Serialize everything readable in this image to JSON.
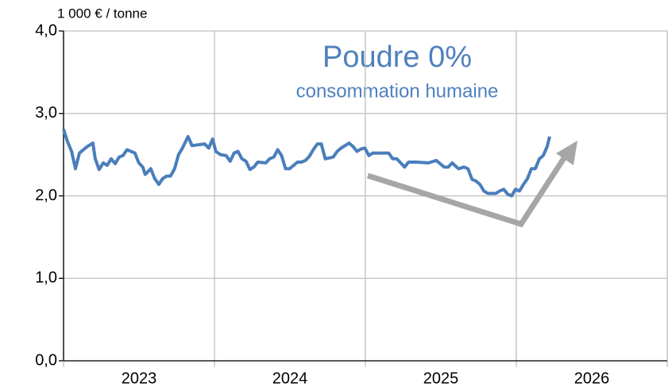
{
  "chart_data": {
    "type": "line",
    "title": "Poudre 0%",
    "subtitle": "consommation humaine",
    "y_label": "1 000 €  / tonne",
    "ylim": [
      0,
      4
    ],
    "yticks": [
      {
        "value": 0,
        "label": "0,0"
      },
      {
        "value": 1,
        "label": "1,0"
      },
      {
        "value": 2,
        "label": "2,0"
      },
      {
        "value": 3,
        "label": "3,0"
      },
      {
        "value": 4,
        "label": "4,0"
      }
    ],
    "xlim": [
      2023,
      2027
    ],
    "xticks": [
      {
        "value": 2023.5,
        "label": "2023"
      },
      {
        "value": 2024.5,
        "label": "2024"
      },
      {
        "value": 2025.5,
        "label": "2025"
      },
      {
        "value": 2026.5,
        "label": "2026"
      }
    ],
    "xgrid": [
      2023,
      2024,
      2025,
      2026,
      2027
    ],
    "grid": true,
    "series": [
      {
        "color": "#4a7ebb",
        "x": [
          2023.0,
          2023.026,
          2023.053,
          2023.079,
          2023.105,
          2023.158,
          2023.194,
          2023.21,
          2023.236,
          2023.263,
          2023.289,
          2023.315,
          2023.342,
          2023.368,
          2023.394,
          2023.42,
          2023.447,
          2023.473,
          2023.499,
          2023.525,
          2023.541,
          2023.578,
          2023.604,
          2023.631,
          2023.657,
          2023.683,
          2023.709,
          2023.736,
          2023.762,
          2023.788,
          2023.825,
          2023.851,
          2023.893,
          2023.935,
          2023.962,
          2023.988,
          2024.009,
          2024.04,
          2024.077,
          2024.104,
          2024.13,
          2024.156,
          2024.182,
          2024.209,
          2024.235,
          2024.261,
          2024.287,
          2024.34,
          2024.366,
          2024.393,
          2024.419,
          2024.445,
          2024.471,
          2024.498,
          2024.524,
          2024.55,
          2024.576,
          2024.603,
          2024.629,
          2024.655,
          2024.682,
          2024.708,
          2024.734,
          2024.787,
          2024.813,
          2024.839,
          2024.892,
          2024.918,
          2024.944,
          2024.971,
          2024.997,
          2025.023,
          2025.049,
          2025.102,
          2025.155,
          2025.181,
          2025.208,
          2025.234,
          2025.26,
          2025.286,
          2025.339,
          2025.417,
          2025.47,
          2025.496,
          2025.522,
          2025.549,
          2025.575,
          2025.617,
          2025.654,
          2025.68,
          2025.707,
          2025.733,
          2025.759,
          2025.785,
          2025.812,
          2025.864,
          2025.89,
          2025.917,
          2025.943,
          2025.969,
          2025.995,
          2026.021,
          2026.048,
          2026.074,
          2026.1,
          2026.126,
          2026.153,
          2026.179,
          2026.205,
          2026.221
        ],
        "values": [
          2.81,
          2.66,
          2.54,
          2.33,
          2.52,
          2.6,
          2.64,
          2.45,
          2.32,
          2.4,
          2.37,
          2.45,
          2.39,
          2.47,
          2.49,
          2.56,
          2.54,
          2.52,
          2.4,
          2.35,
          2.26,
          2.33,
          2.21,
          2.14,
          2.21,
          2.24,
          2.24,
          2.33,
          2.5,
          2.58,
          2.72,
          2.61,
          2.62,
          2.63,
          2.58,
          2.69,
          2.54,
          2.5,
          2.49,
          2.42,
          2.52,
          2.54,
          2.45,
          2.42,
          2.32,
          2.35,
          2.41,
          2.4,
          2.45,
          2.47,
          2.56,
          2.49,
          2.33,
          2.33,
          2.37,
          2.41,
          2.41,
          2.43,
          2.48,
          2.56,
          2.63,
          2.63,
          2.45,
          2.47,
          2.54,
          2.58,
          2.64,
          2.6,
          2.54,
          2.57,
          2.58,
          2.49,
          2.52,
          2.52,
          2.52,
          2.45,
          2.45,
          2.4,
          2.35,
          2.41,
          2.41,
          2.4,
          2.43,
          2.39,
          2.35,
          2.35,
          2.4,
          2.33,
          2.35,
          2.33,
          2.2,
          2.18,
          2.14,
          2.06,
          2.03,
          2.03,
          2.06,
          2.08,
          2.02,
          2.0,
          2.08,
          2.06,
          2.14,
          2.21,
          2.33,
          2.33,
          2.45,
          2.49,
          2.6,
          2.72
        ]
      }
    ]
  }
}
